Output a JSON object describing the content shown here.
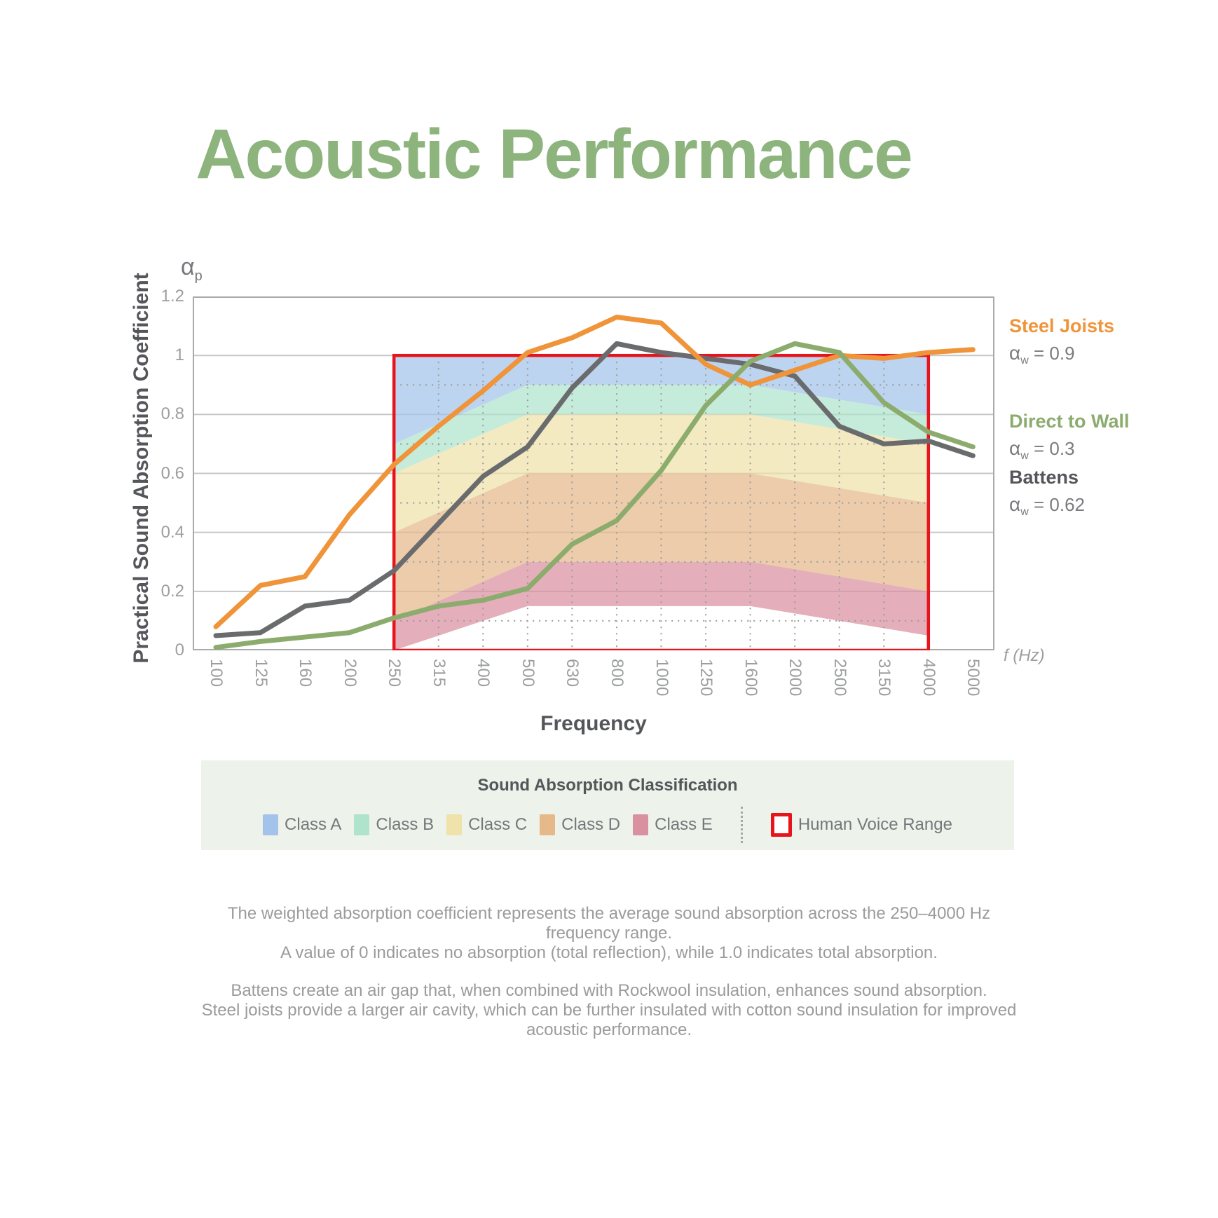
{
  "title": "Acoustic Performance",
  "symbols": {
    "alpha": "α",
    "w": "w",
    "p": "p",
    "f_hz": "f (Hz)"
  },
  "chart_data": {
    "type": "line",
    "title": "Acoustic Performance",
    "xlabel": "Frequency",
    "ylabel": "Practical Sound Absorption Coefficient",
    "y_axis_symbol": "αp",
    "x_axis_symbol": "f (Hz)",
    "ylim": [
      0,
      1.2
    ],
    "grid": "on",
    "categories": [
      "100",
      "125",
      "160",
      "200",
      "250",
      "315",
      "400",
      "500",
      "630",
      "800",
      "1000",
      "1250",
      "1600",
      "2000",
      "2500",
      "3150",
      "4000",
      "5000"
    ],
    "y_ticks": [
      "0",
      "0.2",
      "0.4",
      "0.6",
      "0.8",
      "1",
      "1.2"
    ],
    "y_gridline_values": [
      0,
      0.2,
      0.4,
      0.6,
      0.8,
      1.0,
      1.2
    ],
    "minor_gridline_values": [
      0.1,
      0.3,
      0.5,
      0.7,
      0.9
    ],
    "series": [
      {
        "name": "Battens",
        "alpha_w": 0.62,
        "alpha_text": "= 0.62",
        "color": "#6A6B6D",
        "values": [
          0.05,
          0.06,
          0.15,
          0.17,
          0.27,
          0.43,
          0.59,
          0.69,
          0.89,
          1.04,
          1.01,
          0.99,
          0.97,
          0.93,
          0.76,
          0.7,
          0.71,
          0.66
        ]
      },
      {
        "name": "Steel Joists",
        "alpha_w": 0.9,
        "alpha_text": "= 0.9",
        "color": "#F0943A",
        "values": [
          0.08,
          0.22,
          0.25,
          0.46,
          0.63,
          0.76,
          0.88,
          1.01,
          1.06,
          1.13,
          1.11,
          0.97,
          0.9,
          0.95,
          1.0,
          0.99,
          1.01,
          1.02
        ]
      },
      {
        "name": "Direct to Wall",
        "alpha_w": 0.3,
        "alpha_text": "= 0.3",
        "color": "#8CAC6E",
        "values": [
          0.01,
          0.03,
          0.045,
          0.06,
          0.11,
          0.15,
          0.17,
          0.21,
          0.36,
          0.44,
          0.61,
          0.83,
          0.98,
          1.04,
          1.01,
          0.84,
          0.74,
          0.69
        ]
      }
    ],
    "voice_range": {
      "label": "Human Voice Range",
      "from": "250",
      "to": "4000",
      "from_index": 4,
      "to_index": 16,
      "value_range": [
        0,
        1.0
      ],
      "color": "#E8141B"
    },
    "bands": [
      {
        "name": "Class A",
        "color": "#A3C3EB",
        "bottom": [
          0.7,
          0.767,
          0.833,
          0.9,
          0.9,
          0.9,
          0.9,
          0.9,
          0.9,
          0.875,
          0.85,
          0.825,
          0.8
        ]
      },
      {
        "name": "Class B",
        "color": "#AFE3CC",
        "bottom": [
          0.6,
          0.667,
          0.733,
          0.8,
          0.8,
          0.8,
          0.8,
          0.8,
          0.8,
          0.775,
          0.75,
          0.725,
          0.7
        ]
      },
      {
        "name": "Class C",
        "color": "#EFE2AA",
        "bottom": [
          0.4,
          0.467,
          0.533,
          0.6,
          0.6,
          0.6,
          0.6,
          0.6,
          0.6,
          0.575,
          0.55,
          0.525,
          0.5
        ]
      },
      {
        "name": "Class D",
        "color": "#E5B98A",
        "bottom": [
          0.1,
          0.167,
          0.233,
          0.3,
          0.3,
          0.3,
          0.3,
          0.3,
          0.3,
          0.275,
          0.25,
          0.225,
          0.2
        ]
      },
      {
        "name": "Class E",
        "color": "#D9909F",
        "bottom": [
          0.0,
          0.05,
          0.1,
          0.15,
          0.15,
          0.15,
          0.15,
          0.15,
          0.15,
          0.125,
          0.1,
          0.075,
          0.05
        ]
      }
    ],
    "band_top": 1.0
  },
  "legend": {
    "title": "Sound Absorption Classification",
    "items": [
      {
        "label": "Class A",
        "color": "#A3C3EB"
      },
      {
        "label": "Class B",
        "color": "#AFE3CC"
      },
      {
        "label": "Class C",
        "color": "#EFE2AA"
      },
      {
        "label": "Class D",
        "color": "#E5B98A"
      },
      {
        "label": "Class E",
        "color": "#D9909F"
      }
    ],
    "voice_label": "Human Voice Range"
  },
  "notes": {
    "p1": "The weighted absorption coefficient represents the average sound absorption across the 250–4000 Hz frequency range.\nA value of 0 indicates no absorption (total reflection), while 1.0 indicates total absorption.",
    "p2": "Battens create an air gap that, when combined with Rockwool insulation, enhances sound absorption.\nSteel joists provide a larger air cavity, which can be further insulated with cotton sound insulation for improved\nacoustic performance."
  }
}
